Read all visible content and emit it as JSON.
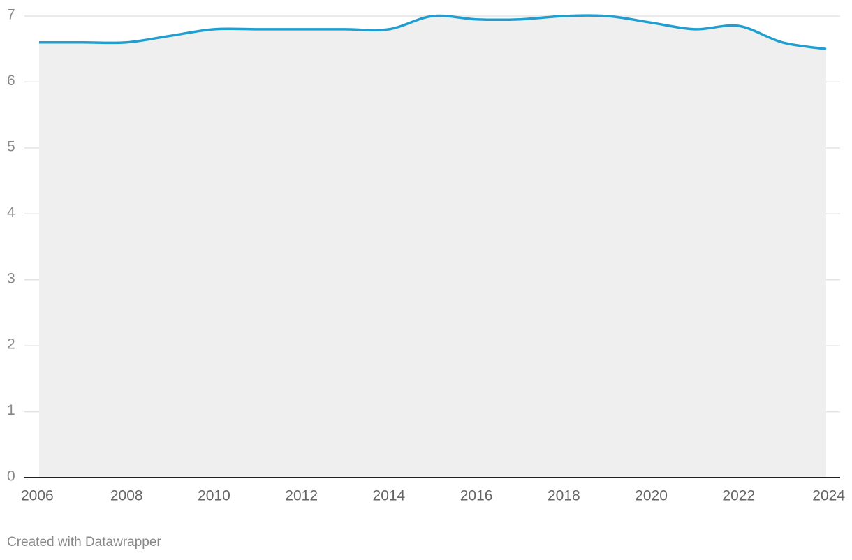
{
  "chart_data": {
    "type": "area",
    "x": [
      2006,
      2007,
      2008,
      2009,
      2010,
      2011,
      2012,
      2013,
      2014,
      2015,
      2016,
      2017,
      2018,
      2019,
      2020,
      2021,
      2022,
      2023,
      2024
    ],
    "series": [
      {
        "color": "#1f9ecf",
        "values": [
          6.6,
          6.6,
          6.6,
          6.7,
          6.8,
          6.8,
          6.8,
          6.8,
          6.8,
          7.0,
          6.95,
          6.95,
          7.0,
          7.0,
          6.9,
          6.8,
          6.85,
          6.6,
          6.5
        ]
      }
    ],
    "area_color": "#efefef",
    "xlim": [
      2006,
      2024
    ],
    "xticks": [
      2006,
      2008,
      2010,
      2012,
      2014,
      2016,
      2018,
      2020,
      2022,
      2024
    ],
    "ylim": [
      0,
      7
    ],
    "yticks": [
      0,
      1,
      2,
      3,
      4,
      5,
      6,
      7
    ],
    "grid": true,
    "credit": "Created with Datawrapper"
  }
}
